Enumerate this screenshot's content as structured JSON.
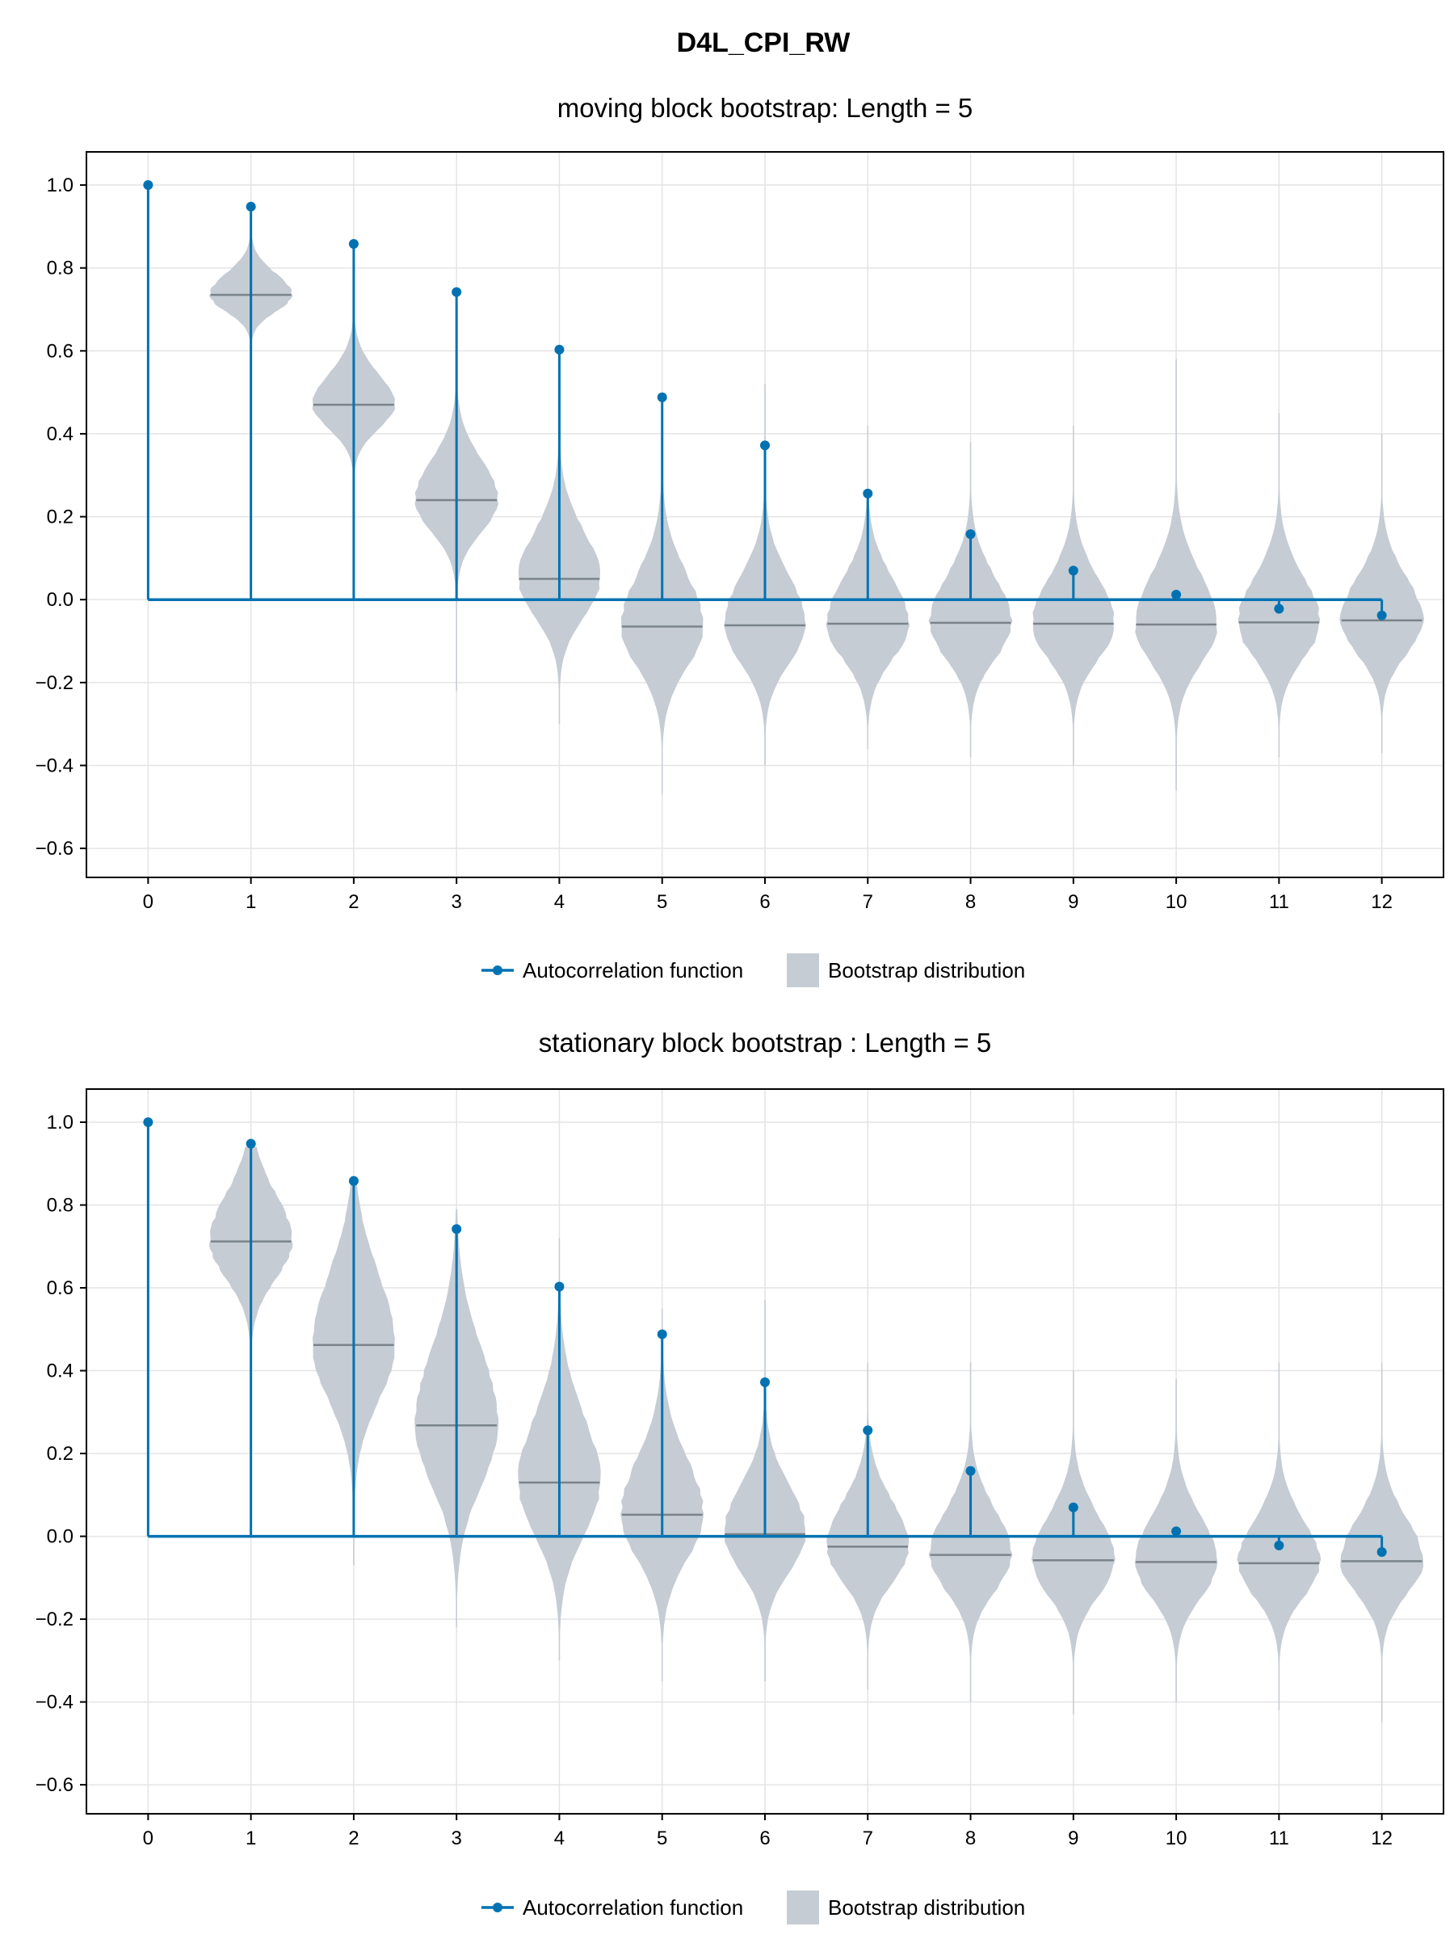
{
  "figure_title": "D4L_CPI_RW",
  "legend": {
    "acf_label": "Autocorrelation function",
    "boot_label": "Bootstrap distribution"
  },
  "colors": {
    "acf": "#0072b2",
    "violin": "#c5ccd3",
    "median_line": "#7a838b",
    "grid": "#e4e4e4",
    "frame": "#000000"
  },
  "chart_data": [
    {
      "type": "stem+violin",
      "title": "moving block bootstrap: Length = 5",
      "xlabel": "",
      "ylabel": "",
      "x": [
        0,
        1,
        2,
        3,
        4,
        5,
        6,
        7,
        8,
        9,
        10,
        11,
        12
      ],
      "xlim": [
        -0.6,
        12.6
      ],
      "ylim": [
        -0.67,
        1.08
      ],
      "yticks": [
        -0.6,
        -0.4,
        -0.2,
        0.0,
        0.2,
        0.4,
        0.6,
        0.8,
        1.0
      ],
      "ytick_labels": [
        "−0.6",
        "−0.4",
        "−0.2",
        "0.0",
        "0.2",
        "0.4",
        "0.6",
        "0.8",
        "1.0"
      ],
      "xtick_labels": [
        "0",
        "1",
        "2",
        "3",
        "4",
        "5",
        "6",
        "7",
        "8",
        "9",
        "10",
        "11",
        "12"
      ],
      "grid": true,
      "legend_position": "bottom",
      "series": [
        {
          "name": "Autocorrelation function",
          "kind": "stem",
          "values": [
            1.0,
            0.948,
            0.858,
            0.742,
            0.603,
            0.488,
            0.372,
            0.256,
            0.158,
            0.07,
            0.012,
            -0.022,
            -0.038
          ]
        },
        {
          "name": "Bootstrap distribution",
          "kind": "violin",
          "medians": [
            null,
            0.735,
            0.47,
            0.24,
            0.05,
            -0.065,
            -0.062,
            -0.058,
            -0.056,
            -0.058,
            -0.06,
            -0.055,
            -0.05
          ],
          "min": [
            null,
            0.5,
            0.1,
            -0.22,
            -0.3,
            -0.47,
            -0.4,
            -0.36,
            -0.38,
            -0.4,
            -0.46,
            -0.38,
            -0.37
          ],
          "max": [
            null,
            0.9,
            0.87,
            0.6,
            0.55,
            0.48,
            0.52,
            0.42,
            0.38,
            0.42,
            0.58,
            0.45,
            0.4
          ],
          "spread": [
            null,
            0.045,
            0.065,
            0.085,
            0.1,
            0.11,
            0.1,
            0.095,
            0.095,
            0.095,
            0.105,
            0.095,
            0.09
          ]
        }
      ]
    },
    {
      "type": "stem+violin",
      "title": "stationary block bootstrap : Length = 5",
      "xlabel": "",
      "ylabel": "",
      "x": [
        0,
        1,
        2,
        3,
        4,
        5,
        6,
        7,
        8,
        9,
        10,
        11,
        12
      ],
      "xlim": [
        -0.6,
        12.6
      ],
      "ylim": [
        -0.67,
        1.08
      ],
      "yticks": [
        -0.6,
        -0.4,
        -0.2,
        0.0,
        0.2,
        0.4,
        0.6,
        0.8,
        1.0
      ],
      "ytick_labels": [
        "−0.6",
        "−0.4",
        "−0.2",
        "0.0",
        "0.2",
        "0.4",
        "0.6",
        "0.8",
        "1.0"
      ],
      "xtick_labels": [
        "0",
        "1",
        "2",
        "3",
        "4",
        "5",
        "6",
        "7",
        "8",
        "9",
        "10",
        "11",
        "12"
      ],
      "grid": true,
      "legend_position": "bottom",
      "series": [
        {
          "name": "Autocorrelation function",
          "kind": "stem",
          "values": [
            1.0,
            0.948,
            0.858,
            0.742,
            0.603,
            0.488,
            0.372,
            0.256,
            0.158,
            0.07,
            0.012,
            -0.022,
            -0.038
          ]
        },
        {
          "name": "Bootstrap distribution",
          "kind": "violin",
          "medians": [
            null,
            0.712,
            0.462,
            0.268,
            0.13,
            0.052,
            0.005,
            -0.025,
            -0.045,
            -0.058,
            -0.062,
            -0.065,
            -0.06
          ],
          "min": [
            null,
            0.3,
            -0.07,
            -0.22,
            -0.3,
            -0.35,
            -0.35,
            -0.37,
            -0.4,
            -0.43,
            -0.4,
            -0.42,
            -0.45
          ],
          "max": [
            null,
            0.94,
            0.87,
            0.79,
            0.72,
            0.55,
            0.57,
            0.42,
            0.42,
            0.4,
            0.38,
            0.42,
            0.42
          ],
          "spread": [
            null,
            0.1,
            0.15,
            0.16,
            0.14,
            0.12,
            0.1,
            0.095,
            0.095,
            0.095,
            0.095,
            0.09,
            0.09
          ]
        }
      ]
    }
  ]
}
